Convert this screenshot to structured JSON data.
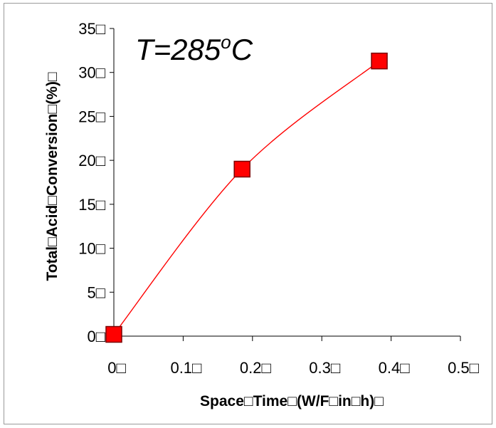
{
  "chart_data": {
    "type": "scatter",
    "title": "",
    "xlabel": "Space□Time□(W/F□in□h)□",
    "ylabel": "Total□Acid□Conversion□(%)□",
    "xlim": [
      0,
      0.5
    ],
    "ylim": [
      0,
      35
    ],
    "x_ticks": [
      0,
      0.1,
      0.2,
      0.3,
      0.4,
      0.5
    ],
    "y_ticks": [
      0,
      5,
      10,
      15,
      20,
      25,
      30,
      35
    ],
    "x_tick_labels": [
      "0□",
      "0.1□",
      "0.2□",
      "0.3□",
      "0.4□",
      "0.5□"
    ],
    "y_tick_labels": [
      "0□",
      "5□",
      "10□",
      "15□",
      "20□",
      "25□",
      "30□",
      "35□"
    ],
    "series": [
      {
        "x": [
          0.0,
          0.185,
          0.383
        ],
        "y": [
          0.2,
          19.0,
          31.3
        ],
        "marker": "square",
        "color": "#ff0000",
        "line": "smooth"
      }
    ],
    "annotation": {
      "main": "T=285",
      "sup": "o",
      "tail": "C"
    },
    "grid": false,
    "legend": "none"
  }
}
